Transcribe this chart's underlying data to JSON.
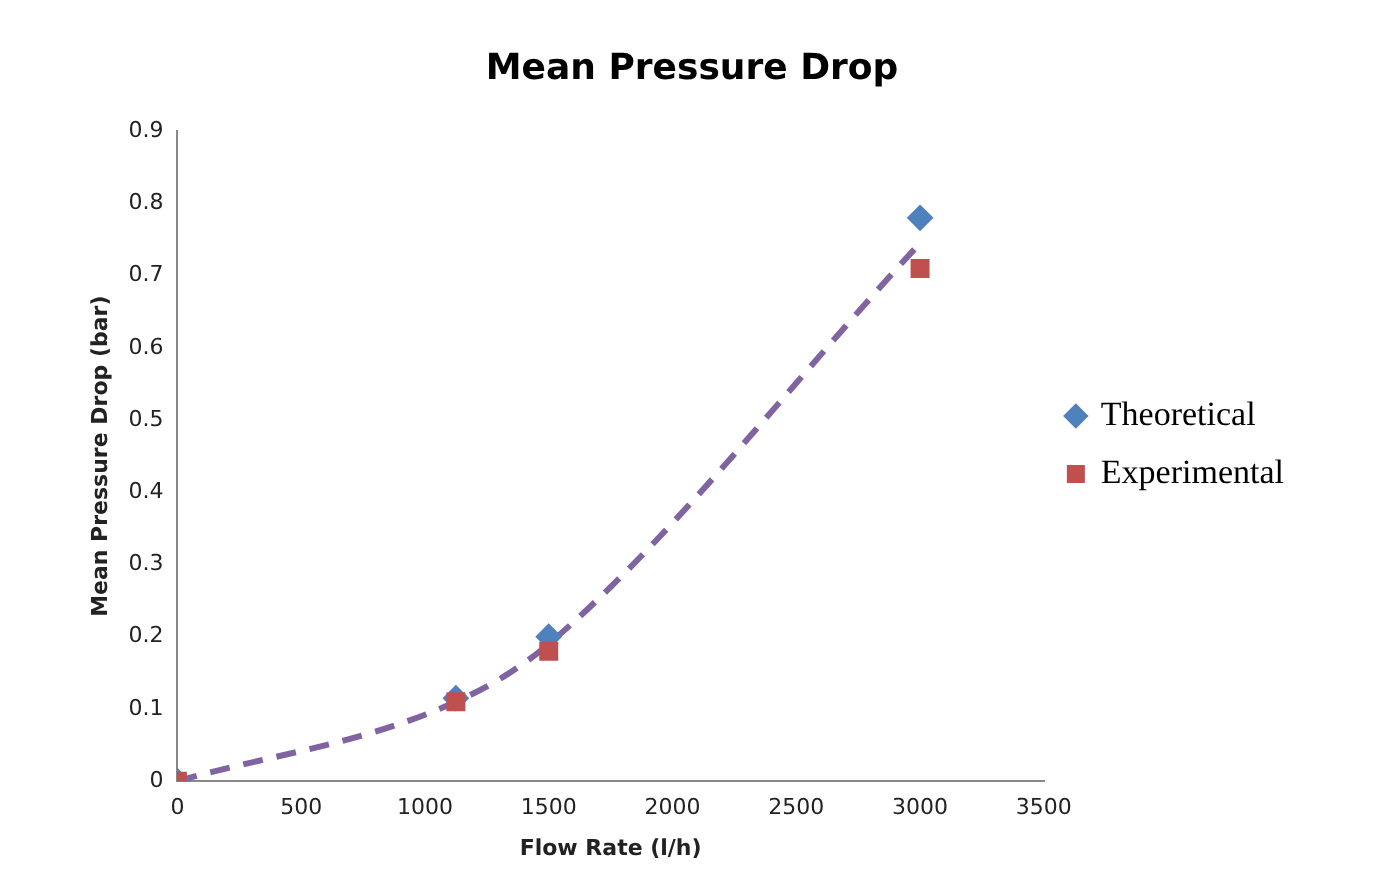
{
  "chart_data": {
    "type": "scatter",
    "title": "Mean Pressure Drop",
    "xlabel": "Flow Rate (l/h)",
    "ylabel": "Mean Pressure Drop (bar)",
    "xlim": [
      0,
      3500
    ],
    "xticks": [
      0,
      500,
      1000,
      1500,
      2000,
      2500,
      3000,
      3500
    ],
    "ylim": [
      0,
      0.9
    ],
    "yticks": [
      0,
      0.1,
      0.2,
      0.3,
      0.4,
      0.5,
      0.6,
      0.7,
      0.8,
      0.9
    ],
    "grid": false,
    "legend": "right",
    "series": [
      {
        "name": "Theoretical",
        "color": "#4f81bd",
        "marker": "diamond",
        "x": [
          0,
          1125,
          1500,
          3000
        ],
        "values": [
          0,
          0.115,
          0.2,
          0.78
        ]
      },
      {
        "name": "Experimental",
        "color": "#c0504d",
        "marker": "square",
        "x": [
          0,
          1125,
          1500,
          3000
        ],
        "values": [
          0,
          0.11,
          0.18,
          0.71
        ]
      },
      {
        "type": "line",
        "color": "#8064a2",
        "marker": "none",
        "line_style": "dashed",
        "x": [
          0,
          1125,
          1500,
          3000
        ],
        "values": [
          0,
          0.11,
          0.19,
          0.745
        ]
      }
    ]
  }
}
